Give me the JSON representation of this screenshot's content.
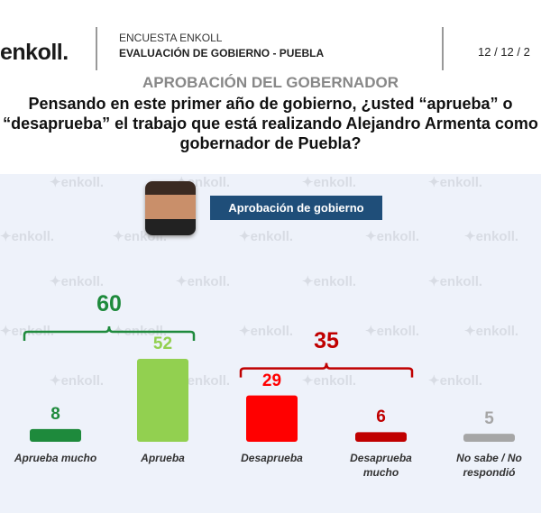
{
  "header": {
    "logo": "enkoll.",
    "line1": "ENCUESTA ENKOLL",
    "line2": "EVALUACIÓN DE GOBIERNO - PUEBLA",
    "date": "12 / 12 / 2"
  },
  "subtitle": "APROBACIÓN DEL GOBERNADOR",
  "question": "Pensando en este primer año de gobierno, ¿usted “aprueba” o “desaprueba” el trabajo que está realizando Alejandro Armenta como gobernador de Puebla?",
  "tag": "Aprobación de gobierno",
  "watermark": "enkoll.",
  "chart_data": {
    "type": "bar",
    "categories": [
      "Aprueba mucho",
      "Aprueba",
      "Desaprueba",
      "Desaprueba mucho",
      "No sabe / No respondió"
    ],
    "values": [
      8,
      52,
      29,
      6,
      5
    ],
    "colors": [
      "#1e8a3c",
      "#92d050",
      "#ff0000",
      "#c00000",
      "#a6a6a6"
    ],
    "groups": [
      {
        "total": 60,
        "color": "#1e8a3c",
        "members": [
          0,
          1
        ]
      },
      {
        "total": 35,
        "color": "#c00000",
        "members": [
          2,
          3
        ]
      }
    ]
  }
}
